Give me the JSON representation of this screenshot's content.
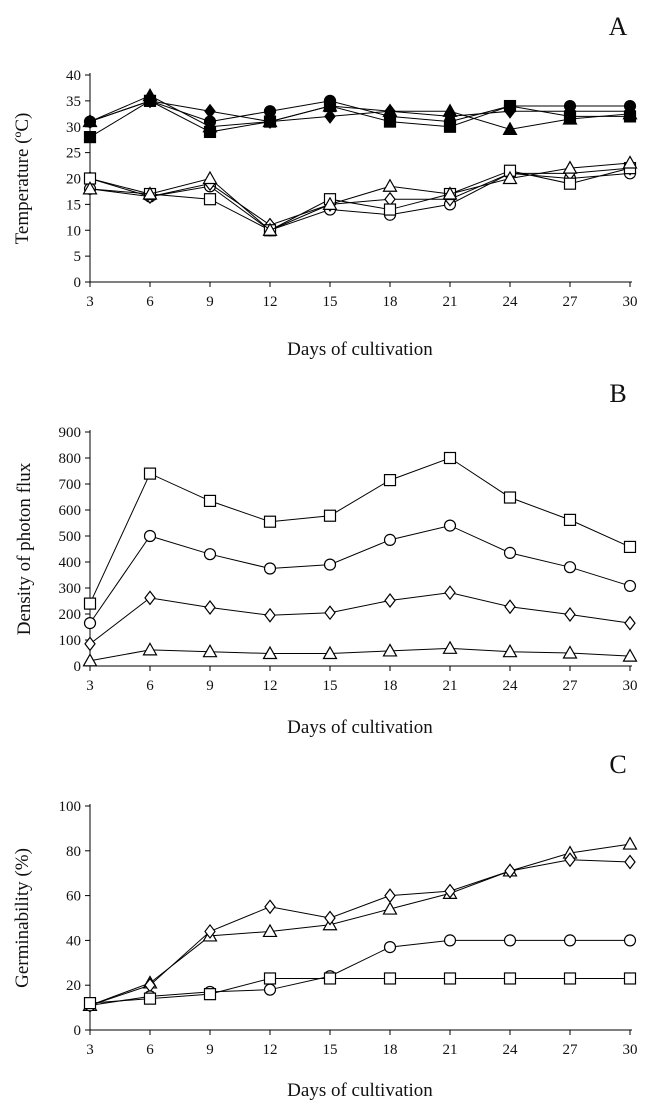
{
  "chart_data": [
    {
      "type": "line",
      "panel": "A",
      "xlabel": "Days of cultivation",
      "ylabel": "Temperature (ºC)",
      "x": [
        3,
        6,
        9,
        12,
        15,
        18,
        21,
        24,
        27,
        30
      ],
      "xticks": [
        "3",
        "6",
        "9",
        "12",
        "15",
        "18",
        "21",
        "24",
        "27",
        "30"
      ],
      "ylim": [
        0,
        40
      ],
      "yticks": [
        0,
        5,
        10,
        15,
        20,
        25,
        30,
        35,
        40
      ],
      "series": [
        {
          "marker": "circle",
          "fill": "filled",
          "values": [
            31,
            35,
            31,
            33,
            35,
            32,
            31,
            34,
            34,
            34
          ]
        },
        {
          "marker": "diamond",
          "fill": "filled",
          "values": [
            31,
            35,
            33,
            31,
            32,
            33,
            32,
            33,
            33,
            33
          ]
        },
        {
          "marker": "square",
          "fill": "filled",
          "values": [
            28,
            35,
            29,
            31,
            34,
            31,
            30,
            34,
            32,
            32
          ]
        },
        {
          "marker": "triangle",
          "fill": "filled",
          "values": [
            31,
            36,
            30,
            31,
            34,
            33,
            33,
            29.5,
            31.5,
            32.5
          ]
        },
        {
          "marker": "circle",
          "fill": "open",
          "values": [
            18,
            16.5,
            18.5,
            10,
            14,
            13,
            15,
            21,
            20,
            21
          ]
        },
        {
          "marker": "diamond",
          "fill": "open",
          "values": [
            20,
            16.5,
            19,
            11,
            15,
            16,
            16,
            21,
            21,
            22
          ]
        },
        {
          "marker": "square",
          "fill": "open",
          "values": [
            20,
            17,
            16,
            10,
            16,
            14,
            17,
            21.5,
            19,
            22
          ]
        },
        {
          "marker": "triangle",
          "fill": "open",
          "values": [
            18,
            17,
            20,
            10,
            15,
            18.5,
            17,
            20,
            22,
            23
          ]
        }
      ]
    },
    {
      "type": "line",
      "panel": "B",
      "xlabel": "Days of cultivation",
      "ylabel": "Density of photon flux",
      "x": [
        3,
        6,
        9,
        12,
        15,
        18,
        21,
        24,
        27,
        30
      ],
      "xticks": [
        "3",
        "6",
        "9",
        "12",
        "15",
        "18",
        "21",
        "24",
        "27",
        "30"
      ],
      "ylim": [
        0,
        900
      ],
      "yticks": [
        0,
        100,
        200,
        300,
        400,
        500,
        600,
        700,
        800,
        900
      ],
      "series": [
        {
          "marker": "square",
          "fill": "open",
          "values": [
            240,
            740,
            635,
            555,
            578,
            715,
            800,
            648,
            562,
            458
          ]
        },
        {
          "marker": "circle",
          "fill": "open",
          "values": [
            165,
            500,
            430,
            375,
            390,
            485,
            540,
            435,
            380,
            308
          ]
        },
        {
          "marker": "diamond",
          "fill": "open",
          "values": [
            85,
            262,
            225,
            195,
            205,
            252,
            282,
            228,
            198,
            165
          ]
        },
        {
          "marker": "triangle",
          "fill": "open",
          "values": [
            20,
            62,
            55,
            48,
            48,
            58,
            68,
            55,
            50,
            38
          ]
        }
      ]
    },
    {
      "type": "line",
      "panel": "C",
      "xlabel": "Days of cultivation",
      "ylabel": "Germinability (%)",
      "x": [
        3,
        6,
        9,
        12,
        15,
        18,
        21,
        24,
        27,
        30
      ],
      "xticks": [
        "3",
        "6",
        "9",
        "12",
        "15",
        "18",
        "21",
        "24",
        "27",
        "30"
      ],
      "ylim": [
        0,
        100
      ],
      "yticks": [
        0,
        20,
        40,
        60,
        80,
        100
      ],
      "series": [
        {
          "marker": "triangle",
          "fill": "open",
          "values": [
            11,
            21,
            42,
            44,
            47,
            54,
            61,
            71,
            79,
            83
          ]
        },
        {
          "marker": "diamond",
          "fill": "open",
          "values": [
            11,
            20,
            44,
            55,
            50,
            60,
            62,
            71,
            76,
            75
          ]
        },
        {
          "marker": "circle",
          "fill": "open",
          "values": [
            11,
            15,
            17,
            18,
            24,
            37,
            40,
            40,
            40,
            40
          ]
        },
        {
          "marker": "square",
          "fill": "open",
          "values": [
            12,
            14,
            16,
            23,
            23,
            23,
            23,
            23,
            23,
            23
          ]
        }
      ]
    }
  ]
}
